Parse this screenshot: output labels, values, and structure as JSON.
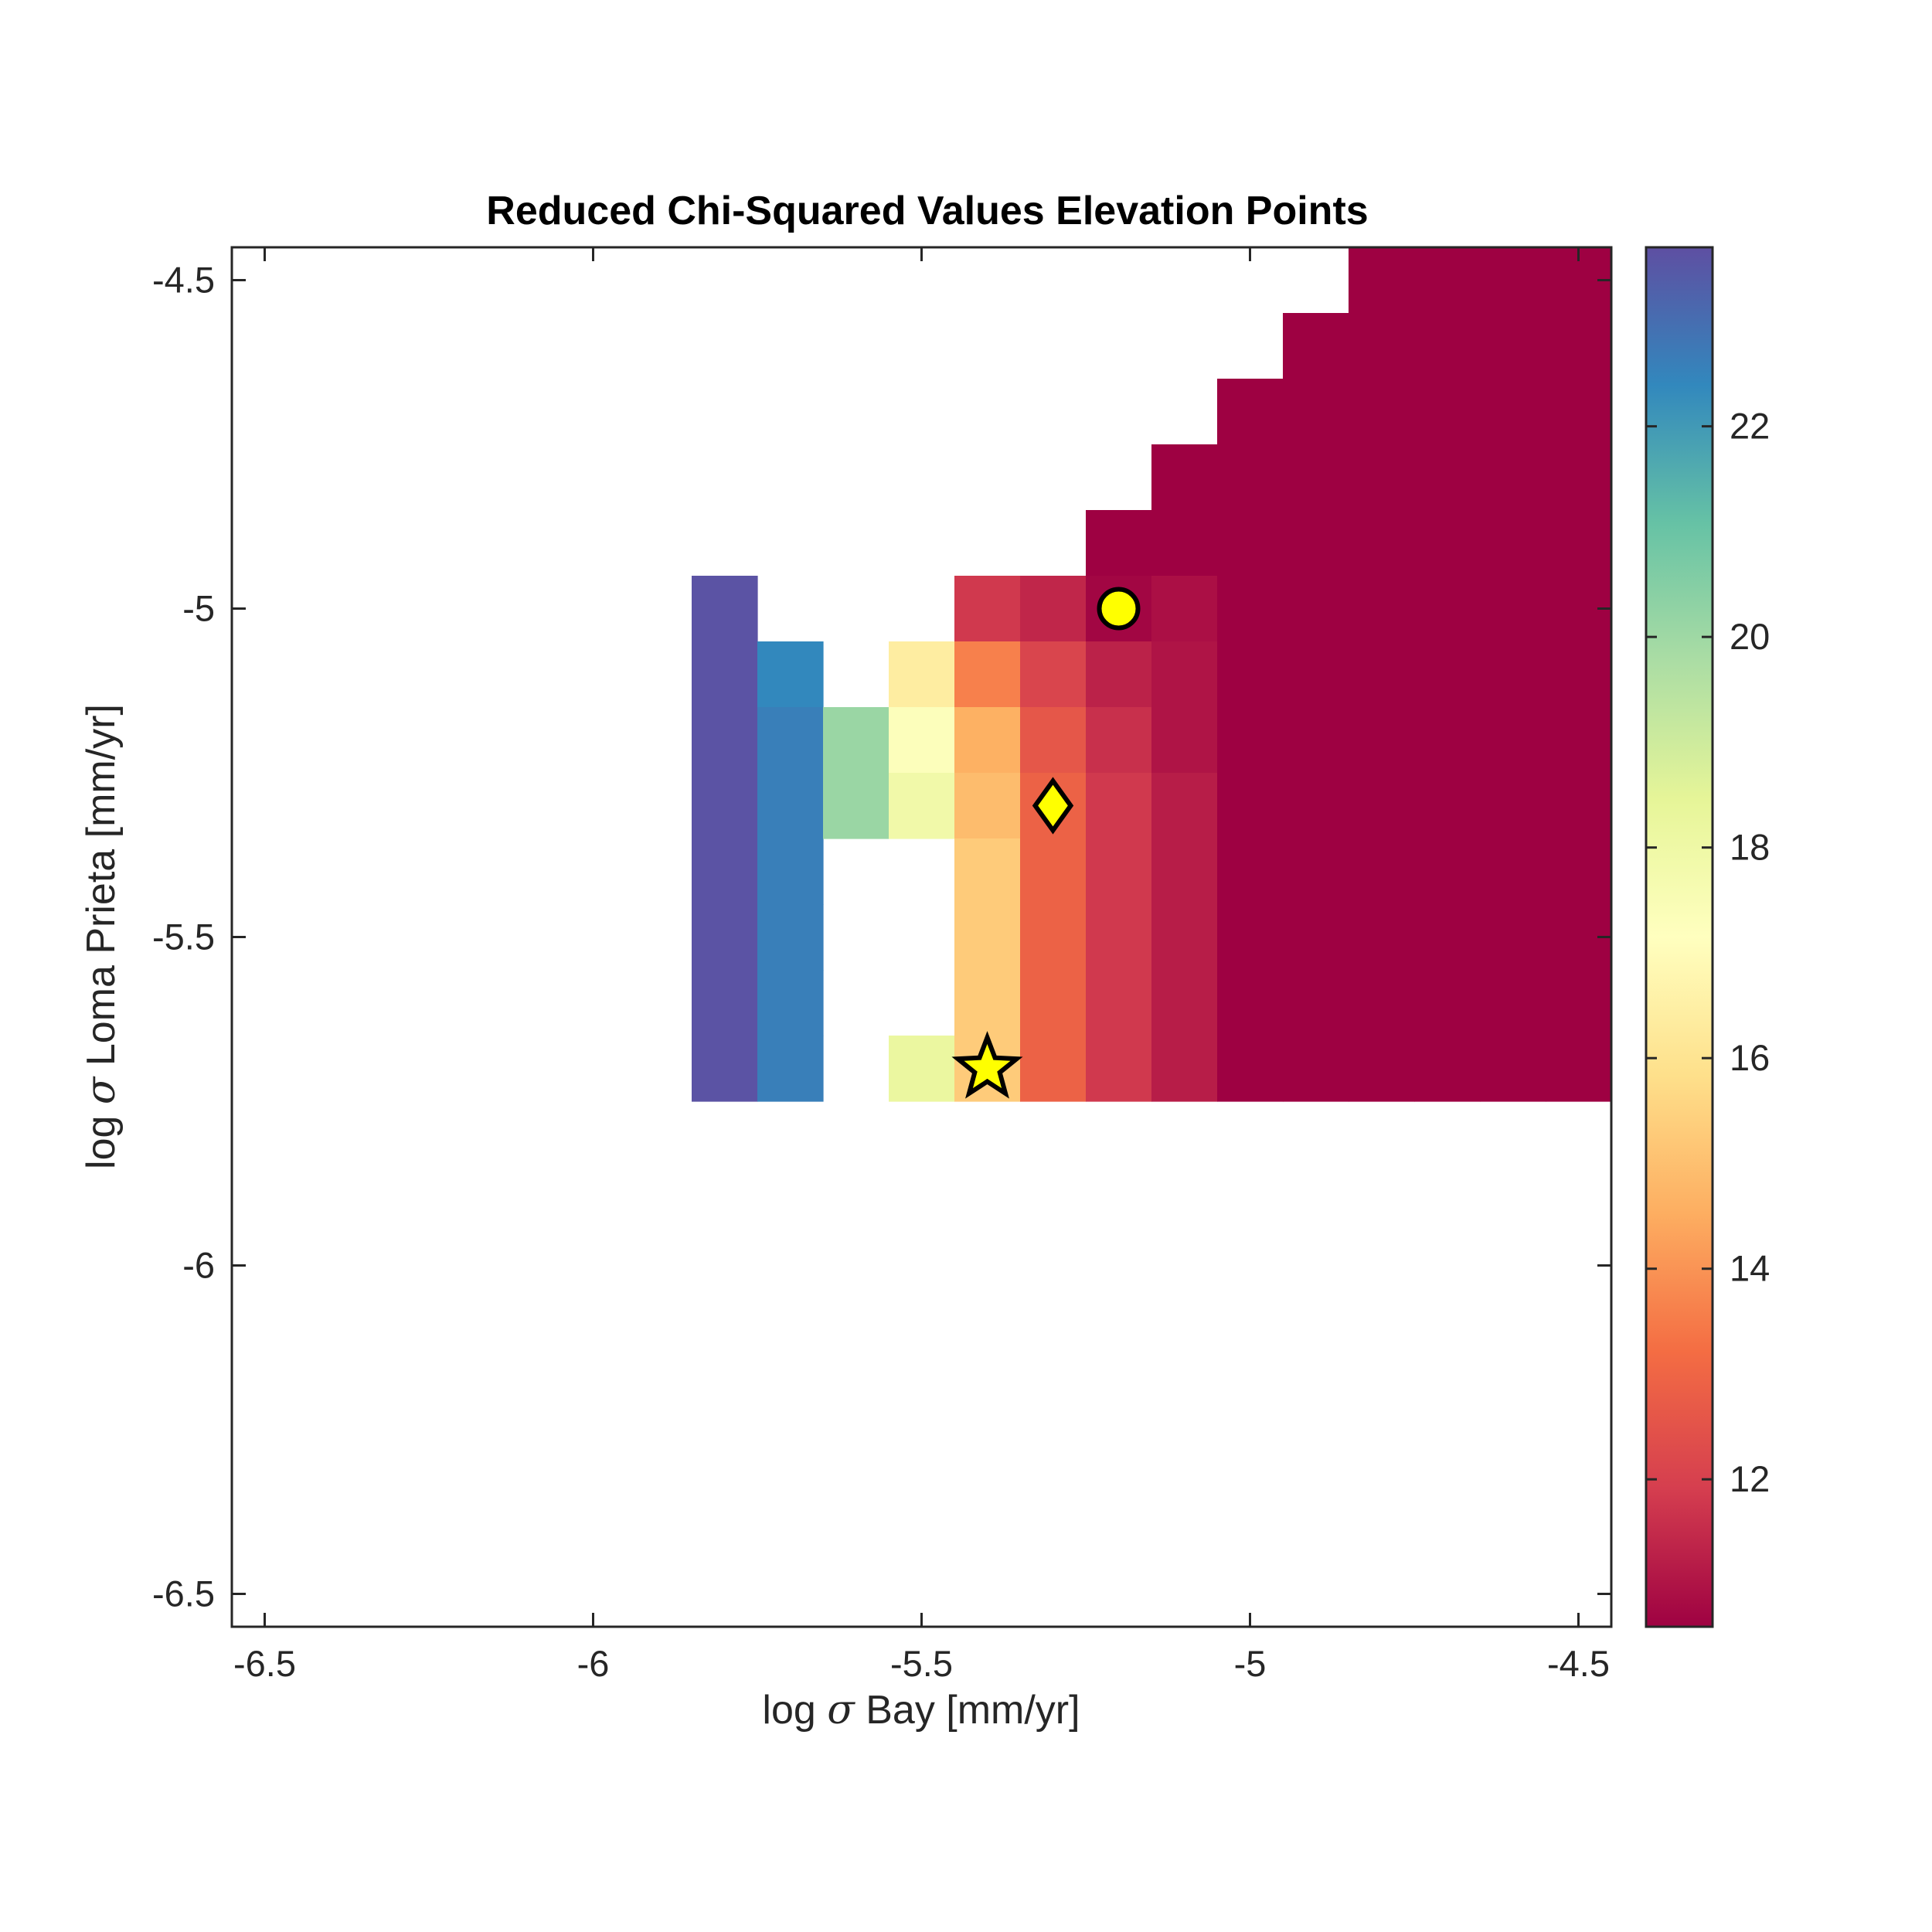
{
  "chart_data": {
    "type": "heatmap",
    "title": "Reduced Chi-Squared Values Elevation Points",
    "xlabel": {
      "prefix": "log ",
      "symbol": "σ",
      "suffix": " Bay [mm/yr]"
    },
    "ylabel": {
      "prefix": "log ",
      "symbol": "σ",
      "suffix": " Loma Prieta [mm/yr]"
    },
    "xlim": [
      -6.55,
      -4.45
    ],
    "ylim": [
      -6.55,
      -4.45
    ],
    "y_reversed": true,
    "cell_size": 0.1,
    "x_ticks": [
      {
        "value": -6.5,
        "label": "-6.5"
      },
      {
        "value": -6.0,
        "label": "-6"
      },
      {
        "value": -5.5,
        "label": "-5.5"
      },
      {
        "value": -5.0,
        "label": "-5"
      },
      {
        "value": -4.5,
        "label": "-4.5"
      }
    ],
    "y_ticks": [
      {
        "value": -6.5,
        "label": "-6.5"
      },
      {
        "value": -6.0,
        "label": "-6"
      },
      {
        "value": -5.5,
        "label": "-5.5"
      },
      {
        "value": -5.0,
        "label": "-5"
      },
      {
        "value": -4.5,
        "label": "-4.5"
      }
    ],
    "colormap": "spectral",
    "clim": [
      10.6,
      23.7
    ],
    "colorbar_ticks": [
      {
        "value": 12,
        "label": "12"
      },
      {
        "value": 14,
        "label": "14"
      },
      {
        "value": 16,
        "label": "16"
      },
      {
        "value": 18,
        "label": "18"
      },
      {
        "value": 20,
        "label": "20"
      },
      {
        "value": 22,
        "label": "22"
      }
    ],
    "cells": [
      [
        -5.8,
        -5.0,
        23.6
      ],
      [
        -5.8,
        -5.1,
        23.6
      ],
      [
        -5.8,
        -5.2,
        23.6
      ],
      [
        -5.8,
        -5.3,
        23.6
      ],
      [
        -5.8,
        -5.4,
        23.6
      ],
      [
        -5.8,
        -5.5,
        23.6
      ],
      [
        -5.8,
        -5.6,
        23.6
      ],
      [
        -5.8,
        -5.7,
        23.6
      ],
      [
        -5.7,
        -5.1,
        22.4
      ],
      [
        -5.7,
        -5.2,
        22.6
      ],
      [
        -5.7,
        -5.3,
        22.6
      ],
      [
        -5.7,
        -5.4,
        22.6
      ],
      [
        -5.7,
        -5.5,
        22.6
      ],
      [
        -5.7,
        -5.6,
        22.6
      ],
      [
        -5.7,
        -5.7,
        22.6
      ],
      [
        -5.6,
        -5.2,
        20.1
      ],
      [
        -5.6,
        -5.3,
        20.1
      ],
      [
        -5.5,
        -5.1,
        16.4
      ],
      [
        -5.5,
        -5.2,
        17.3
      ],
      [
        -5.5,
        -5.3,
        17.9
      ],
      [
        -5.5,
        -5.7,
        18.2
      ],
      [
        -5.4,
        -5.0,
        11.8
      ],
      [
        -5.4,
        -5.1,
        13.6
      ],
      [
        -5.4,
        -5.2,
        14.6
      ],
      [
        -5.4,
        -5.3,
        14.9
      ],
      [
        -5.4,
        -5.4,
        15.3
      ],
      [
        -5.4,
        -5.5,
        15.3
      ],
      [
        -5.4,
        -5.6,
        15.3
      ],
      [
        -5.4,
        -5.7,
        15.3
      ],
      [
        -5.3,
        -5.0,
        11.4
      ],
      [
        -5.3,
        -5.1,
        12.1
      ],
      [
        -5.3,
        -5.2,
        12.6
      ],
      [
        -5.3,
        -5.3,
        12.9
      ],
      [
        -5.3,
        -5.4,
        12.9
      ],
      [
        -5.3,
        -5.5,
        12.9
      ],
      [
        -5.3,
        -5.6,
        12.9
      ],
      [
        -5.3,
        -5.7,
        12.9
      ],
      [
        -5.2,
        -4.9,
        10.6
      ],
      [
        -5.2,
        -5.0,
        10.7
      ],
      [
        -5.2,
        -5.1,
        11.3
      ],
      [
        -5.2,
        -5.2,
        11.6
      ],
      [
        -5.2,
        -5.3,
        11.8
      ],
      [
        -5.2,
        -5.4,
        11.8
      ],
      [
        -5.2,
        -5.5,
        11.8
      ],
      [
        -5.2,
        -5.6,
        11.8
      ],
      [
        -5.2,
        -5.7,
        11.8
      ],
      [
        -5.1,
        -4.8,
        10.6
      ],
      [
        -5.1,
        -4.9,
        10.6
      ],
      [
        -5.1,
        -5.0,
        10.9
      ],
      [
        -5.1,
        -5.1,
        11.0
      ],
      [
        -5.1,
        -5.2,
        11.0
      ],
      [
        -5.1,
        -5.3,
        11.2
      ],
      [
        -5.1,
        -5.4,
        11.2
      ],
      [
        -5.1,
        -5.5,
        11.2
      ],
      [
        -5.1,
        -5.6,
        11.2
      ],
      [
        -5.1,
        -5.7,
        11.2
      ],
      [
        -5.0,
        -4.7,
        10.6
      ],
      [
        -5.0,
        -4.8,
        10.6
      ],
      [
        -5.0,
        -4.9,
        10.6
      ],
      [
        -5.0,
        -5.0,
        10.6
      ],
      [
        -5.0,
        -5.1,
        10.6
      ],
      [
        -5.0,
        -5.2,
        10.6
      ],
      [
        -5.0,
        -5.3,
        10.6
      ],
      [
        -5.0,
        -5.4,
        10.6
      ],
      [
        -5.0,
        -5.5,
        10.6
      ],
      [
        -5.0,
        -5.6,
        10.6
      ],
      [
        -5.0,
        -5.7,
        10.6
      ],
      [
        -4.9,
        -4.6,
        10.6
      ],
      [
        -4.9,
        -4.7,
        10.6
      ],
      [
        -4.9,
        -4.8,
        10.6
      ],
      [
        -4.9,
        -4.9,
        10.6
      ],
      [
        -4.9,
        -5.0,
        10.6
      ],
      [
        -4.9,
        -5.1,
        10.6
      ],
      [
        -4.9,
        -5.2,
        10.6
      ],
      [
        -4.9,
        -5.3,
        10.6
      ],
      [
        -4.9,
        -5.4,
        10.6
      ],
      [
        -4.9,
        -5.5,
        10.6
      ],
      [
        -4.9,
        -5.6,
        10.6
      ],
      [
        -4.9,
        -5.7,
        10.6
      ],
      [
        -4.8,
        -4.5,
        10.6
      ],
      [
        -4.8,
        -4.6,
        10.6
      ],
      [
        -4.8,
        -4.7,
        10.6
      ],
      [
        -4.8,
        -4.8,
        10.6
      ],
      [
        -4.8,
        -4.9,
        10.6
      ],
      [
        -4.8,
        -5.0,
        10.6
      ],
      [
        -4.8,
        -5.1,
        10.6
      ],
      [
        -4.8,
        -5.2,
        10.6
      ],
      [
        -4.8,
        -5.3,
        10.6
      ],
      [
        -4.8,
        -5.4,
        10.6
      ],
      [
        -4.8,
        -5.5,
        10.6
      ],
      [
        -4.8,
        -5.6,
        10.6
      ],
      [
        -4.8,
        -5.7,
        10.6
      ],
      [
        -4.7,
        -4.5,
        10.6
      ],
      [
        -4.7,
        -4.6,
        10.6
      ],
      [
        -4.7,
        -4.7,
        10.6
      ],
      [
        -4.7,
        -4.8,
        10.6
      ],
      [
        -4.7,
        -4.9,
        10.6
      ],
      [
        -4.7,
        -5.0,
        10.6
      ],
      [
        -4.7,
        -5.1,
        10.6
      ],
      [
        -4.7,
        -5.2,
        10.6
      ],
      [
        -4.7,
        -5.3,
        10.6
      ],
      [
        -4.7,
        -5.4,
        10.6
      ],
      [
        -4.7,
        -5.5,
        10.6
      ],
      [
        -4.7,
        -5.6,
        10.6
      ],
      [
        -4.7,
        -5.7,
        10.6
      ],
      [
        -4.6,
        -4.5,
        10.6
      ],
      [
        -4.6,
        -4.6,
        10.6
      ],
      [
        -4.6,
        -4.7,
        10.6
      ],
      [
        -4.6,
        -4.8,
        10.6
      ],
      [
        -4.6,
        -4.9,
        10.6
      ],
      [
        -4.6,
        -5.0,
        10.6
      ],
      [
        -4.6,
        -5.1,
        10.6
      ],
      [
        -4.6,
        -5.2,
        10.6
      ],
      [
        -4.6,
        -5.3,
        10.6
      ],
      [
        -4.6,
        -5.4,
        10.6
      ],
      [
        -4.6,
        -5.5,
        10.6
      ],
      [
        -4.6,
        -5.6,
        10.6
      ],
      [
        -4.6,
        -5.7,
        10.6
      ],
      [
        -4.5,
        -4.5,
        10.6
      ],
      [
        -4.5,
        -4.6,
        10.6
      ],
      [
        -4.5,
        -4.7,
        10.6
      ],
      [
        -4.5,
        -4.8,
        10.6
      ],
      [
        -4.5,
        -4.9,
        10.6
      ],
      [
        -4.5,
        -5.0,
        10.6
      ],
      [
        -4.5,
        -5.1,
        10.6
      ],
      [
        -4.5,
        -5.2,
        10.6
      ],
      [
        -4.5,
        -5.3,
        10.6
      ],
      [
        -4.5,
        -5.4,
        10.6
      ],
      [
        -4.5,
        -5.5,
        10.6
      ],
      [
        -4.5,
        -5.6,
        10.6
      ],
      [
        -4.5,
        -5.7,
        10.6
      ]
    ],
    "markers": [
      {
        "shape": "circle",
        "x": -5.2,
        "y": -5.0,
        "fill": "#ffff00",
        "stroke": "#000000"
      },
      {
        "shape": "diamond",
        "x": -5.3,
        "y": -5.3,
        "fill": "#ffff00",
        "stroke": "#000000"
      },
      {
        "shape": "star",
        "x": -5.4,
        "y": -5.7,
        "fill": "#ffff00",
        "stroke": "#000000"
      }
    ]
  }
}
